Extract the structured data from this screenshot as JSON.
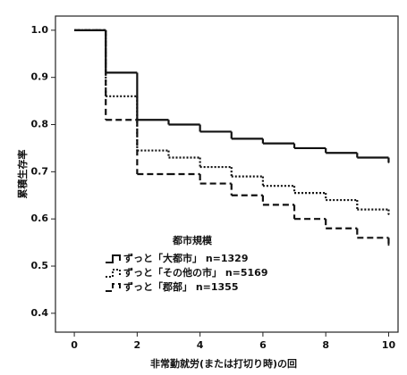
{
  "chart_data": {
    "type": "step",
    "ylabel": "累積生存率",
    "xlabel": "非常勤就労(または打切り時)の回",
    "legend_title": "都市規模",
    "x": [
      0,
      1,
      2,
      3,
      4,
      5,
      6,
      7,
      8,
      9,
      10
    ],
    "series": [
      {
        "name": "ずっと「大都市」 n=1329",
        "color": "#111111",
        "dash": "solid",
        "values": [
          1.0,
          0.91,
          0.81,
          0.8,
          0.785,
          0.77,
          0.76,
          0.75,
          0.74,
          0.73,
          0.72
        ]
      },
      {
        "name": "ずっと「その他の市」 n=5169",
        "color": "#111111",
        "dash": "dotted",
        "values": [
          1.0,
          0.86,
          0.745,
          0.73,
          0.71,
          0.69,
          0.67,
          0.655,
          0.64,
          0.62,
          0.61
        ]
      },
      {
        "name": "ずっと「郡部」 n=1355",
        "color": "#111111",
        "dash": "dashed",
        "values": [
          1.0,
          0.81,
          0.695,
          0.695,
          0.675,
          0.65,
          0.63,
          0.6,
          0.58,
          0.56,
          0.545
        ]
      }
    ],
    "xlim": [
      -0.6,
      10.3
    ],
    "ylim": [
      0.36,
      1.03
    ],
    "xticks": [
      0,
      2,
      4,
      6,
      8,
      10
    ],
    "yticks": [
      0.4,
      0.5,
      0.6,
      0.7,
      0.8,
      0.9,
      {
        "value": 1,
        "label": "1.0"
      }
    ]
  }
}
